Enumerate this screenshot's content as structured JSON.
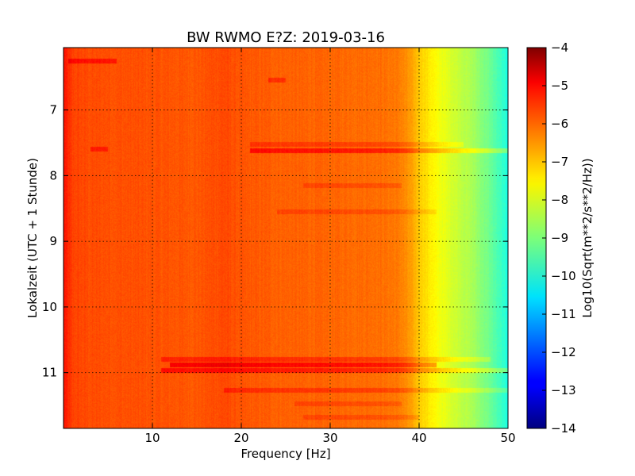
{
  "chart_data": {
    "type": "heatmap",
    "title": "BW RWMO E?Z: 2019-03-16",
    "xlabel": "Frequency [Hz]",
    "ylabel": "Lokalzeit (UTC + 1 Stunde)",
    "xlim": [
      0,
      50
    ],
    "ylim": [
      11.85,
      6.05
    ],
    "x_ticks": [
      10,
      20,
      30,
      40,
      50
    ],
    "y_ticks": [
      7,
      8,
      9,
      10,
      11
    ],
    "y_axis_inverted": true,
    "grid": true,
    "colormap": "jet",
    "colorbar": {
      "label": "Log10(Sqrt(m**2/s**2/Hz))",
      "min": -14,
      "max": -4,
      "ticks": [
        -4,
        -5,
        -6,
        -7,
        -8,
        -9,
        -10,
        -11,
        -12,
        -13,
        -14
      ]
    },
    "spectrum_profile": {
      "frequency_hz": [
        0,
        1,
        3,
        10,
        15,
        18,
        20,
        25,
        30,
        35,
        37,
        38,
        39,
        40,
        41,
        42,
        43,
        44,
        45,
        46,
        47,
        48,
        49,
        50
      ],
      "log10_amplitude": [
        -5.4,
        -5.9,
        -6.0,
        -6.05,
        -6.1,
        -5.95,
        -6.1,
        -6.2,
        -6.25,
        -6.3,
        -6.4,
        -6.5,
        -6.8,
        -7.2,
        -7.5,
        -7.8,
        -8.0,
        -8.2,
        -8.4,
        -8.6,
        -8.9,
        -9.2,
        -9.6,
        -10.0
      ]
    },
    "band_events": [
      {
        "time": 6.25,
        "f_start": 0.5,
        "f_end": 6,
        "delta": 0.6
      },
      {
        "time": 6.55,
        "f_start": 23,
        "f_end": 25,
        "delta": 0.5
      },
      {
        "time": 7.52,
        "f_start": 21,
        "f_end": 45,
        "delta": 0.4
      },
      {
        "time": 7.6,
        "f_start": 3,
        "f_end": 5,
        "delta": 0.5
      },
      {
        "time": 7.62,
        "f_start": 21,
        "f_end": 50,
        "delta": 0.8
      },
      {
        "time": 8.15,
        "f_start": 27,
        "f_end": 38,
        "delta": 0.3
      },
      {
        "time": 8.55,
        "f_start": 24,
        "f_end": 42,
        "delta": 0.3
      },
      {
        "time": 10.8,
        "f_start": 11,
        "f_end": 48,
        "delta": 0.5
      },
      {
        "time": 10.88,
        "f_start": 12,
        "f_end": 42,
        "delta": 0.9
      },
      {
        "time": 10.97,
        "f_start": 11,
        "f_end": 50,
        "delta": 0.7
      },
      {
        "time": 11.27,
        "f_start": 18,
        "f_end": 50,
        "delta": 0.45
      },
      {
        "time": 11.48,
        "f_start": 26,
        "f_end": 38,
        "delta": 0.3
      },
      {
        "time": 11.68,
        "f_start": 27,
        "f_end": 40,
        "delta": 0.3
      }
    ]
  }
}
